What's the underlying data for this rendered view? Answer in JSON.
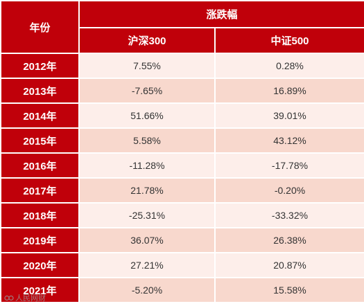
{
  "table": {
    "year_header": "年份",
    "group_header": "涨跌幅",
    "columns": [
      "沪深300",
      "中证500"
    ],
    "rows": [
      {
        "year": "2012年",
        "hs300": "7.55%",
        "zz500": "0.28%"
      },
      {
        "year": "2013年",
        "hs300": "-7.65%",
        "zz500": "16.89%"
      },
      {
        "year": "2014年",
        "hs300": "51.66%",
        "zz500": "39.01%"
      },
      {
        "year": "2015年",
        "hs300": "5.58%",
        "zz500": "43.12%"
      },
      {
        "year": "2016年",
        "hs300": "-11.28%",
        "zz500": "-17.78%"
      },
      {
        "year": "2017年",
        "hs300": "21.78%",
        "zz500": "-0.20%"
      },
      {
        "year": "2018年",
        "hs300": "-25.31%",
        "zz500": "-33.32%"
      },
      {
        "year": "2019年",
        "hs300": "36.07%",
        "zz500": "26.38%"
      },
      {
        "year": "2020年",
        "hs300": "27.21%",
        "zz500": "20.87%"
      },
      {
        "year": "2021年",
        "hs300": "-5.20%",
        "zz500": "15.58%"
      }
    ]
  },
  "watermark": {
    "text": "人民网财",
    "logo_icon": "watermark-logo-icon"
  },
  "colors": {
    "header_red": "#c0000a",
    "row_light": "#fdeeea",
    "row_dark": "#f8d8cd",
    "text": "#333333"
  }
}
